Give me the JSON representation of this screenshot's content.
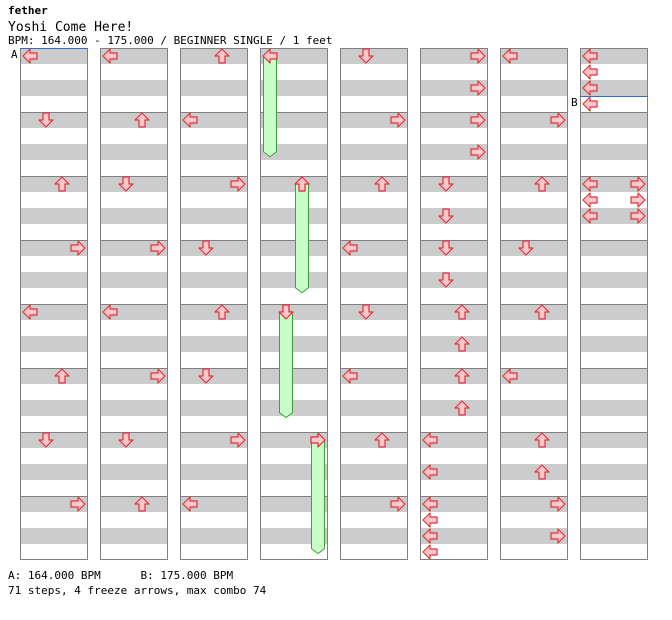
{
  "header": {
    "artist": "fether",
    "title": "Yoshi Come Here!",
    "info": "BPM: 164.000 - 175.000 / BEGINNER SINGLE / 1 feet"
  },
  "footer": {
    "legend": "A: 164.000 BPM      B: 175.000 BPM",
    "stats": "71 steps, 4 freeze arrows, max combo 74"
  },
  "bpm_markers": [
    {
      "label": "A",
      "bpm": "164.000 BPM",
      "column": 1,
      "measure": 1
    },
    {
      "label": "B",
      "bpm": "175.000 BPM",
      "column": 8,
      "measure": 1.75
    }
  ],
  "colors": {
    "band": "#cccccc",
    "arrow_fill": "#ffc8c8",
    "arrow_stroke": "#e03040",
    "freeze_fill": "#c8ffc8",
    "freeze_stroke": "#40a040",
    "bpm_line": "#3070c0"
  },
  "columns": 8,
  "measures_per_column": 8,
  "arrows": [
    {
      "col": 1,
      "beat": 0,
      "dir": "left"
    },
    {
      "col": 1,
      "beat": 4,
      "dir": "down"
    },
    {
      "col": 1,
      "beat": 8,
      "dir": "up"
    },
    {
      "col": 1,
      "beat": 12,
      "dir": "right"
    },
    {
      "col": 1,
      "beat": 16,
      "dir": "left"
    },
    {
      "col": 1,
      "beat": 20,
      "dir": "up"
    },
    {
      "col": 1,
      "beat": 24,
      "dir": "down"
    },
    {
      "col": 1,
      "beat": 28,
      "dir": "right"
    },
    {
      "col": 2,
      "beat": 0,
      "dir": "left"
    },
    {
      "col": 2,
      "beat": 4,
      "dir": "up"
    },
    {
      "col": 2,
      "beat": 8,
      "dir": "down"
    },
    {
      "col": 2,
      "beat": 12,
      "dir": "right"
    },
    {
      "col": 2,
      "beat": 16,
      "dir": "left"
    },
    {
      "col": 2,
      "beat": 20,
      "dir": "right"
    },
    {
      "col": 2,
      "beat": 24,
      "dir": "down"
    },
    {
      "col": 2,
      "beat": 28,
      "dir": "up"
    },
    {
      "col": 3,
      "beat": 0,
      "dir": "up"
    },
    {
      "col": 3,
      "beat": 4,
      "dir": "left"
    },
    {
      "col": 3,
      "beat": 8,
      "dir": "right"
    },
    {
      "col": 3,
      "beat": 12,
      "dir": "down"
    },
    {
      "col": 3,
      "beat": 16,
      "dir": "up"
    },
    {
      "col": 3,
      "beat": 20,
      "dir": "down"
    },
    {
      "col": 3,
      "beat": 24,
      "dir": "right"
    },
    {
      "col": 3,
      "beat": 28,
      "dir": "left"
    },
    {
      "col": 4,
      "beat": 8,
      "dir": "up"
    },
    {
      "col": 4,
      "beat": 16,
      "dir": "down"
    },
    {
      "col": 4,
      "beat": 24,
      "dir": "right"
    },
    {
      "col": 5,
      "beat": 0,
      "dir": "down"
    },
    {
      "col": 5,
      "beat": 4,
      "dir": "right"
    },
    {
      "col": 5,
      "beat": 8,
      "dir": "up"
    },
    {
      "col": 5,
      "beat": 12,
      "dir": "left"
    },
    {
      "col": 5,
      "beat": 16,
      "dir": "down"
    },
    {
      "col": 5,
      "beat": 20,
      "dir": "left"
    },
    {
      "col": 5,
      "beat": 24,
      "dir": "up"
    },
    {
      "col": 5,
      "beat": 28,
      "dir": "right"
    },
    {
      "col": 6,
      "beat": 0,
      "dir": "right"
    },
    {
      "col": 6,
      "beat": 2,
      "dir": "right"
    },
    {
      "col": 6,
      "beat": 4,
      "dir": "right"
    },
    {
      "col": 6,
      "beat": 6,
      "dir": "right"
    },
    {
      "col": 6,
      "beat": 8,
      "dir": "down"
    },
    {
      "col": 6,
      "beat": 10,
      "dir": "down"
    },
    {
      "col": 6,
      "beat": 12,
      "dir": "down"
    },
    {
      "col": 6,
      "beat": 14,
      "dir": "down"
    },
    {
      "col": 6,
      "beat": 16,
      "dir": "up"
    },
    {
      "col": 6,
      "beat": 18,
      "dir": "up"
    },
    {
      "col": 6,
      "beat": 20,
      "dir": "up"
    },
    {
      "col": 6,
      "beat": 22,
      "dir": "up"
    },
    {
      "col": 6,
      "beat": 24,
      "dir": "left"
    },
    {
      "col": 6,
      "beat": 26,
      "dir": "left"
    },
    {
      "col": 6,
      "beat": 28,
      "dir": "left"
    },
    {
      "col": 6,
      "beat": 29,
      "dir": "left"
    },
    {
      "col": 6,
      "beat": 30,
      "dir": "left"
    },
    {
      "col": 6,
      "beat": 31,
      "dir": "left"
    },
    {
      "col": 7,
      "beat": 0,
      "dir": "left"
    },
    {
      "col": 7,
      "beat": 4,
      "dir": "right"
    },
    {
      "col": 7,
      "beat": 8,
      "dir": "up"
    },
    {
      "col": 7,
      "beat": 12,
      "dir": "down"
    },
    {
      "col": 7,
      "beat": 16,
      "dir": "up"
    },
    {
      "col": 7,
      "beat": 20,
      "dir": "left"
    },
    {
      "col": 7,
      "beat": 24,
      "dir": "up"
    },
    {
      "col": 7,
      "beat": 26,
      "dir": "up"
    },
    {
      "col": 7,
      "beat": 28,
      "dir": "right"
    },
    {
      "col": 7,
      "beat": 30,
      "dir": "right"
    },
    {
      "col": 8,
      "beat": 0,
      "dir": "left"
    },
    {
      "col": 8,
      "beat": 1,
      "dir": "left"
    },
    {
      "col": 8,
      "beat": 2,
      "dir": "left"
    },
    {
      "col": 8,
      "beat": 3,
      "dir": "left"
    },
    {
      "col": 8,
      "beat": 8,
      "dir": "left"
    },
    {
      "col": 8,
      "beat": 8,
      "dir": "right"
    },
    {
      "col": 8,
      "beat": 9,
      "dir": "left"
    },
    {
      "col": 8,
      "beat": 9,
      "dir": "right"
    },
    {
      "col": 8,
      "beat": 10,
      "dir": "left"
    },
    {
      "col": 8,
      "beat": 10,
      "dir": "right"
    }
  ],
  "freezes": [
    {
      "col": 4,
      "lane": "left",
      "start_beat": 0,
      "end_beat": 6.3
    },
    {
      "col": 4,
      "lane": "up",
      "start_beat": 8,
      "end_beat": 14.8
    },
    {
      "col": 4,
      "lane": "down",
      "start_beat": 16,
      "end_beat": 22.6
    },
    {
      "col": 4,
      "lane": "right",
      "start_beat": 24,
      "end_beat": 31.1
    }
  ]
}
